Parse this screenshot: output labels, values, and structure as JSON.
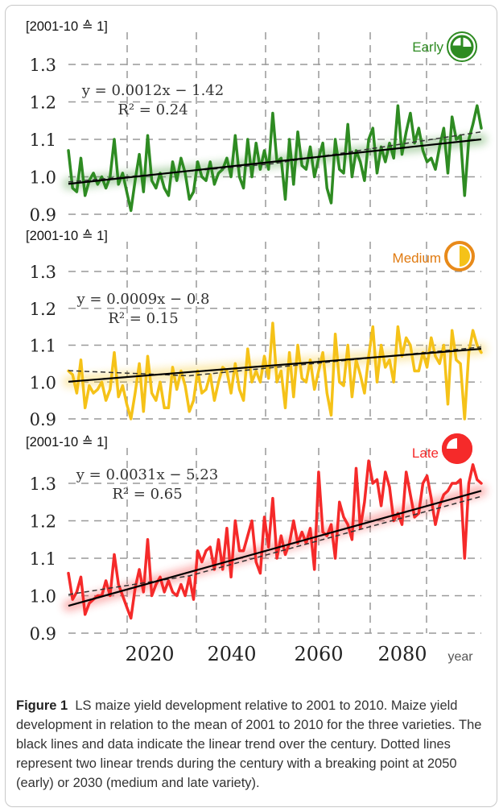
{
  "colors": {
    "early": "#2e8b22",
    "medium": "#f5c218",
    "late": "#f52a2a",
    "medium_label": "#e07a10",
    "medium_badge_ring": "#e88a1a",
    "grid": "#999999",
    "trend": "#000000",
    "frame": "#c8c8c8"
  },
  "chart_data": [
    {
      "type": "line",
      "panel": "Early",
      "unit_label": "[2001-10 ≙ 1]",
      "label": "Early",
      "badge_icon": "pie-quarter-icon",
      "xlim": [
        2001,
        2100
      ],
      "ylim": [
        0.9,
        1.3
      ],
      "yticks": [
        "0.9",
        "1.0",
        "1.1",
        "1.2",
        "1.3"
      ],
      "grid": true,
      "equation": "y = 0.0012x − 1.42",
      "r2_label": "R² = 0.24",
      "series": [
        {
          "x": [
            2001,
            2002,
            2003,
            2004,
            2005,
            2006,
            2007,
            2008,
            2009,
            2010,
            2011,
            2012,
            2013,
            2014,
            2015,
            2016,
            2017,
            2018,
            2019,
            2020,
            2021,
            2022,
            2023,
            2024,
            2025,
            2026,
            2027,
            2028,
            2029,
            2030,
            2031,
            2032,
            2033,
            2034,
            2035,
            2036,
            2037,
            2038,
            2039,
            2040,
            2041,
            2042,
            2043,
            2044,
            2045,
            2046,
            2047,
            2048,
            2049,
            2050,
            2051,
            2052,
            2053,
            2054,
            2055,
            2056,
            2057,
            2058,
            2059,
            2060,
            2061,
            2062,
            2063,
            2064,
            2065,
            2066,
            2067,
            2068,
            2069,
            2070,
            2071,
            2072,
            2073,
            2074,
            2075,
            2076,
            2077,
            2078,
            2079,
            2080,
            2081,
            2082,
            2083,
            2084,
            2085,
            2086,
            2087,
            2088,
            2089,
            2090,
            2091,
            2092,
            2093,
            2094,
            2095,
            2096,
            2097,
            2098,
            2099,
            2100
          ],
          "y": [
            1.07,
            0.97,
            0.96,
            1.05,
            0.95,
            0.99,
            1.01,
            0.98,
            1.0,
            0.97,
            1.0,
            1.1,
            0.98,
            1.01,
            0.96,
            0.91,
            0.99,
            1.06,
            0.96,
            1.11,
            0.99,
            0.97,
            1.01,
            0.97,
            0.95,
            1.04,
            0.99,
            1.05,
            1.01,
            0.94,
            0.96,
            1.04,
            1.0,
            0.99,
            1.04,
            0.98,
            1.01,
            1.02,
            1.05,
            1.0,
            1.11,
            1.0,
            0.97,
            1.1,
            1.0,
            1.09,
            1.02,
            1.07,
            1.02,
            1.17,
            1.04,
            1.05,
            0.94,
            1.1,
            0.98,
            1.12,
            1.03,
            1.02,
            1.08,
            1.0,
            1.05,
            1.09,
            0.97,
            0.93,
            1.1,
            1.02,
            1.01,
            1.14,
            1.0,
            1.07,
            1.04,
            0.99,
            1.1,
            1.13,
            1.01,
            1.08,
            1.04,
            1.09,
            1.05,
            1.19,
            1.06,
            1.12,
            1.17,
            1.09,
            1.13,
            1.07,
            1.04,
            1.05,
            1.02,
            1.08,
            1.13,
            1.01,
            1.16,
            1.1,
            1.11,
            0.95,
            1.1,
            1.14,
            1.19,
            1.13
          ]
        }
      ],
      "trend": {
        "slope": 0.0012,
        "intercept": -1.42
      }
    },
    {
      "type": "line",
      "panel": "Medium",
      "unit_label": "[2001-10 ≙ 1]",
      "label": "Medium",
      "badge_icon": "pie-half-icon",
      "xlim": [
        2001,
        2100
      ],
      "ylim": [
        0.9,
        1.3
      ],
      "yticks": [
        "0.9",
        "1.0",
        "1.1",
        "1.2",
        "1.3"
      ],
      "grid": true,
      "equation": "y = 0.0009x − 0.8",
      "r2_label": "R² = 0.15",
      "series": [
        {
          "x": [
            2001,
            2002,
            2003,
            2004,
            2005,
            2006,
            2007,
            2008,
            2009,
            2010,
            2011,
            2012,
            2013,
            2014,
            2015,
            2016,
            2017,
            2018,
            2019,
            2020,
            2021,
            2022,
            2023,
            2024,
            2025,
            2026,
            2027,
            2028,
            2029,
            2030,
            2031,
            2032,
            2033,
            2034,
            2035,
            2036,
            2037,
            2038,
            2039,
            2040,
            2041,
            2042,
            2043,
            2044,
            2045,
            2046,
            2047,
            2048,
            2049,
            2050,
            2051,
            2052,
            2053,
            2054,
            2055,
            2056,
            2057,
            2058,
            2059,
            2060,
            2061,
            2062,
            2063,
            2064,
            2065,
            2066,
            2067,
            2068,
            2069,
            2070,
            2071,
            2072,
            2073,
            2074,
            2075,
            2076,
            2077,
            2078,
            2079,
            2080,
            2081,
            2082,
            2083,
            2084,
            2085,
            2086,
            2087,
            2088,
            2089,
            2090,
            2091,
            2092,
            2093,
            2094,
            2095,
            2096,
            2097,
            2098,
            2099,
            2100
          ],
          "y": [
            1.03,
            1.02,
            0.97,
            1.06,
            0.93,
            0.99,
            0.97,
            0.98,
            1.0,
            0.95,
            0.98,
            1.08,
            0.96,
            0.99,
            0.94,
            0.9,
            0.97,
            1.05,
            0.92,
            1.07,
            0.97,
            0.95,
            1.0,
            0.93,
            0.93,
            1.04,
            0.98,
            1.03,
            0.99,
            0.92,
            0.95,
            1.03,
            0.97,
            0.98,
            1.02,
            0.95,
            1.0,
            1.04,
            1.03,
            0.97,
            1.05,
            0.98,
            0.95,
            1.09,
            1.0,
            1.03,
            1.0,
            1.07,
            1.01,
            1.16,
            1.0,
            1.03,
            0.93,
            1.08,
            0.96,
            1.1,
            1.01,
            1.0,
            1.06,
            0.98,
            1.03,
            1.08,
            0.97,
            0.91,
            1.13,
            1.0,
            0.99,
            1.1,
            0.96,
            1.06,
            1.02,
            0.97,
            1.07,
            1.15,
            1.0,
            1.1,
            1.04,
            1.06,
            1.0,
            1.15,
            1.07,
            1.12,
            1.1,
            1.03,
            1.03,
            1.08,
            1.04,
            1.12,
            1.07,
            1.05,
            1.1,
            0.94,
            1.14,
            1.06,
            1.05,
            0.9,
            1.08,
            1.14,
            1.1,
            1.08
          ]
        }
      ],
      "trend": {
        "slope": 0.0009,
        "intercept": -0.8
      }
    },
    {
      "type": "line",
      "panel": "Late",
      "unit_label": "[2001-10 ≙ 1]",
      "label": "Late",
      "badge_icon": "pie-three-quarter-icon",
      "xlim": [
        2001,
        2100
      ],
      "ylim": [
        0.9,
        1.3
      ],
      "yticks": [
        "0.9",
        "1.0",
        "1.1",
        "1.2",
        "1.3"
      ],
      "xticks": [
        2020,
        2040,
        2060,
        2080
      ],
      "xlabel": "year",
      "grid": true,
      "equation": "y = 0.0031x − 5.23",
      "r2_label": "R² = 0.65",
      "series": [
        {
          "x": [
            2001,
            2002,
            2003,
            2004,
            2005,
            2006,
            2007,
            2008,
            2009,
            2010,
            2011,
            2012,
            2013,
            2014,
            2015,
            2016,
            2017,
            2018,
            2019,
            2020,
            2021,
            2022,
            2023,
            2024,
            2025,
            2026,
            2027,
            2028,
            2029,
            2030,
            2031,
            2032,
            2033,
            2034,
            2035,
            2036,
            2037,
            2038,
            2039,
            2040,
            2041,
            2042,
            2043,
            2044,
            2045,
            2046,
            2047,
            2048,
            2049,
            2050,
            2051,
            2052,
            2053,
            2054,
            2055,
            2056,
            2057,
            2058,
            2059,
            2060,
            2061,
            2062,
            2063,
            2064,
            2065,
            2066,
            2067,
            2068,
            2069,
            2070,
            2071,
            2072,
            2073,
            2074,
            2075,
            2076,
            2077,
            2078,
            2079,
            2080,
            2081,
            2082,
            2083,
            2084,
            2085,
            2086,
            2087,
            2088,
            2089,
            2090,
            2091,
            2092,
            2093,
            2094,
            2095,
            2096,
            2097,
            2098,
            2099,
            2100
          ],
          "y": [
            1.06,
            0.99,
            1.01,
            1.05,
            0.95,
            0.98,
            0.99,
            1.0,
            1.0,
            1.04,
            1.0,
            1.11,
            1.03,
            1.0,
            0.97,
            0.94,
            1.02,
            1.07,
            1.01,
            1.15,
            1.0,
            1.03,
            1.05,
            1.01,
            1.04,
            1.01,
            1.0,
            1.03,
            1.0,
            1.05,
            0.99,
            1.12,
            1.09,
            1.12,
            1.13,
            1.07,
            1.15,
            1.07,
            1.18,
            1.05,
            1.2,
            1.12,
            1.12,
            1.16,
            1.2,
            1.09,
            1.06,
            1.21,
            1.13,
            1.26,
            1.1,
            1.16,
            1.11,
            1.14,
            1.2,
            1.14,
            1.17,
            1.14,
            1.18,
            1.07,
            1.33,
            1.17,
            1.16,
            1.19,
            1.1,
            1.25,
            1.21,
            1.19,
            1.15,
            1.34,
            1.18,
            1.25,
            1.36,
            1.3,
            1.31,
            1.24,
            1.33,
            1.29,
            1.2,
            1.22,
            1.19,
            1.33,
            1.27,
            1.21,
            1.22,
            1.3,
            1.32,
            1.26,
            1.19,
            1.24,
            1.27,
            1.28,
            1.3,
            1.3,
            1.31,
            1.1,
            1.3,
            1.35,
            1.31,
            1.3
          ]
        }
      ],
      "trend": {
        "slope": 0.0031,
        "intercept": -5.23
      }
    }
  ],
  "caption": {
    "label": "Figure 1",
    "text": "LS maize yield development relative to 2001 to 2010. Maize yield development in relation to the mean of 2001 to 2010 for the three varieties. The black lines and data indicate the linear trend over the century. Dotted lines represent two linear trends during the century with a breaking point at 2050 (early) or 2030 (medium and late variety)."
  }
}
